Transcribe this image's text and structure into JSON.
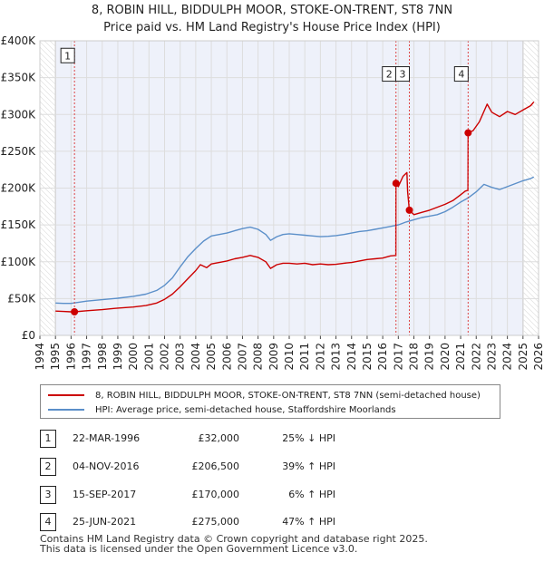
{
  "chart_data": {
    "type": "line",
    "title": "8, ROBIN HILL, BIDDULPH MOOR, STOKE-ON-TRENT, ST8 7NN",
    "subtitle": "Price paid vs. HM Land Registry's House Price Index (HPI)",
    "xlim": [
      1994,
      2026
    ],
    "ylim": [
      0,
      400000
    ],
    "x_ticks": [
      "1994",
      "1995",
      "1996",
      "1997",
      "1998",
      "1999",
      "2000",
      "2001",
      "2002",
      "2003",
      "2004",
      "2005",
      "2006",
      "2007",
      "2008",
      "2009",
      "2010",
      "2011",
      "2012",
      "2013",
      "2014",
      "2015",
      "2016",
      "2017",
      "2018",
      "2019",
      "2020",
      "2021",
      "2022",
      "2023",
      "2024",
      "2025",
      "2026"
    ],
    "y_ticks": [
      {
        "value": 0,
        "label": "£0"
      },
      {
        "value": 50000,
        "label": "£50K"
      },
      {
        "value": 100000,
        "label": "£100K"
      },
      {
        "value": 150000,
        "label": "£150K"
      },
      {
        "value": 200000,
        "label": "£200K"
      },
      {
        "value": 250000,
        "label": "£250K"
      },
      {
        "value": 300000,
        "label": "£300K"
      },
      {
        "value": 350000,
        "label": "£350K"
      },
      {
        "value": 400000,
        "label": "£400K"
      }
    ],
    "grid": true,
    "series": [
      {
        "name": "8, ROBIN HILL, BIDDULPH MOOR, STOKE-ON-TRENT, ST8 7NN (semi-detached house)",
        "color": "#cc0000",
        "points": [
          [
            1995.0,
            33000
          ],
          [
            1995.5,
            32500
          ],
          [
            1996.0,
            32000
          ],
          [
            1996.22,
            32000
          ],
          [
            1997.0,
            33500
          ],
          [
            1998.0,
            35000
          ],
          [
            1999.0,
            37000
          ],
          [
            2000.0,
            38500
          ],
          [
            2000.8,
            40500
          ],
          [
            2001.5,
            44000
          ],
          [
            2002.0,
            49000
          ],
          [
            2002.5,
            56000
          ],
          [
            2003.0,
            66000
          ],
          [
            2003.5,
            77000
          ],
          [
            2004.0,
            88000
          ],
          [
            2004.3,
            96000
          ],
          [
            2004.7,
            92000
          ],
          [
            2005.0,
            97000
          ],
          [
            2005.5,
            99000
          ],
          [
            2006.0,
            101000
          ],
          [
            2006.5,
            104000
          ],
          [
            2007.0,
            106000
          ],
          [
            2007.5,
            108500
          ],
          [
            2008.0,
            106000
          ],
          [
            2008.5,
            100000
          ],
          [
            2008.8,
            91000
          ],
          [
            2009.2,
            96000
          ],
          [
            2009.6,
            98000
          ],
          [
            2010.0,
            98000
          ],
          [
            2010.5,
            97000
          ],
          [
            2011.0,
            98000
          ],
          [
            2011.5,
            96000
          ],
          [
            2012.0,
            97000
          ],
          [
            2012.5,
            96000
          ],
          [
            2013.0,
            96500
          ],
          [
            2013.5,
            98000
          ],
          [
            2014.0,
            99000
          ],
          [
            2014.5,
            101000
          ],
          [
            2015.0,
            103000
          ],
          [
            2015.5,
            104000
          ],
          [
            2016.0,
            105000
          ],
          [
            2016.5,
            108000
          ],
          [
            2016.84,
            108500
          ],
          [
            2016.85,
            206500
          ],
          [
            2017.0,
            202000
          ],
          [
            2017.3,
            216000
          ],
          [
            2017.55,
            221000
          ],
          [
            2017.6,
            195000
          ],
          [
            2017.71,
            170000
          ],
          [
            2018.0,
            164000
          ],
          [
            2018.5,
            167000
          ],
          [
            2019.0,
            170000
          ],
          [
            2019.5,
            174000
          ],
          [
            2020.0,
            178000
          ],
          [
            2020.5,
            183000
          ],
          [
            2021.0,
            191000
          ],
          [
            2021.3,
            196000
          ],
          [
            2021.47,
            197000
          ],
          [
            2021.48,
            275000
          ],
          [
            2021.8,
            278000
          ],
          [
            2022.2,
            290000
          ],
          [
            2022.7,
            314000
          ],
          [
            2023.0,
            303000
          ],
          [
            2023.5,
            297000
          ],
          [
            2024.0,
            304000
          ],
          [
            2024.5,
            300000
          ],
          [
            2025.0,
            306000
          ],
          [
            2025.5,
            312000
          ],
          [
            2025.7,
            317000
          ]
        ]
      },
      {
        "name": "HPI: Average price, semi-detached house, Staffordshire Moorlands",
        "color": "#5b8fc9",
        "points": [
          [
            1995.0,
            44000
          ],
          [
            1995.5,
            43500
          ],
          [
            1996.0,
            43500
          ],
          [
            1996.5,
            45000
          ],
          [
            1997.0,
            46500
          ],
          [
            1998.0,
            48500
          ],
          [
            1999.0,
            50500
          ],
          [
            2000.0,
            53000
          ],
          [
            2000.8,
            56000
          ],
          [
            2001.5,
            61000
          ],
          [
            2002.0,
            68000
          ],
          [
            2002.5,
            78000
          ],
          [
            2003.0,
            93000
          ],
          [
            2003.5,
            107000
          ],
          [
            2004.0,
            118000
          ],
          [
            2004.5,
            128000
          ],
          [
            2005.0,
            135000
          ],
          [
            2005.5,
            137000
          ],
          [
            2006.0,
            139000
          ],
          [
            2006.5,
            142000
          ],
          [
            2007.0,
            145000
          ],
          [
            2007.5,
            147000
          ],
          [
            2008.0,
            144000
          ],
          [
            2008.5,
            137000
          ],
          [
            2008.8,
            129000
          ],
          [
            2009.2,
            134000
          ],
          [
            2009.6,
            137000
          ],
          [
            2010.0,
            138000
          ],
          [
            2010.5,
            137000
          ],
          [
            2011.0,
            136000
          ],
          [
            2011.5,
            135000
          ],
          [
            2012.0,
            134000
          ],
          [
            2012.5,
            134500
          ],
          [
            2013.0,
            135500
          ],
          [
            2013.5,
            137000
          ],
          [
            2014.0,
            139000
          ],
          [
            2014.5,
            141000
          ],
          [
            2015.0,
            142000
          ],
          [
            2015.5,
            144000
          ],
          [
            2016.0,
            146000
          ],
          [
            2016.5,
            148000
          ],
          [
            2017.0,
            150000
          ],
          [
            2017.5,
            154000
          ],
          [
            2018.0,
            157000
          ],
          [
            2018.5,
            160000
          ],
          [
            2019.0,
            162000
          ],
          [
            2019.5,
            164000
          ],
          [
            2020.0,
            168000
          ],
          [
            2020.5,
            174000
          ],
          [
            2021.0,
            181000
          ],
          [
            2021.5,
            187000
          ],
          [
            2022.0,
            195000
          ],
          [
            2022.5,
            205000
          ],
          [
            2023.0,
            201000
          ],
          [
            2023.5,
            198000
          ],
          [
            2024.0,
            202000
          ],
          [
            2024.5,
            206000
          ],
          [
            2025.0,
            210000
          ],
          [
            2025.5,
            213000
          ],
          [
            2025.7,
            215000
          ]
        ]
      }
    ],
    "sales": [
      {
        "num": "1",
        "x": 1996.22,
        "price": 32000,
        "label_value": 380000
      },
      {
        "num": "2",
        "x": 2016.85,
        "price": 206500,
        "label_value": 355000
      },
      {
        "num": "3",
        "x": 2017.71,
        "price": 170000,
        "label_value": 355000
      },
      {
        "num": "4",
        "x": 2021.48,
        "price": 275000,
        "label_value": 355000
      }
    ],
    "pre_window": [
      1994,
      1995.0
    ],
    "post_window": [
      2025.0,
      2026
    ]
  },
  "legend": {
    "property_label": "8, ROBIN HILL, BIDDULPH MOOR, STOKE-ON-TRENT, ST8 7NN (semi-detached house)",
    "hpi_label": "HPI: Average price, semi-detached house, Staffordshire Moorlands"
  },
  "transactions": [
    {
      "num": "1",
      "date": "22-MAR-1996",
      "price": "£32,000",
      "hpi": "25% ↓ HPI"
    },
    {
      "num": "2",
      "date": "04-NOV-2016",
      "price": "£206,500",
      "hpi": "39% ↑ HPI"
    },
    {
      "num": "3",
      "date": "15-SEP-2017",
      "price": "£170,000",
      "hpi": "6% ↑ HPI"
    },
    {
      "num": "4",
      "date": "25-JUN-2021",
      "price": "£275,000",
      "hpi": "47% ↑ HPI"
    }
  ],
  "footer": {
    "line1": "Contains HM Land Registry data © Crown copyright and database right 2025.",
    "line2": "This data is licensed under the Open Government Licence v3.0."
  },
  "colors": {
    "property": "#cc0000",
    "hpi": "#5b8fc9",
    "background_band": "#eef1fa"
  }
}
